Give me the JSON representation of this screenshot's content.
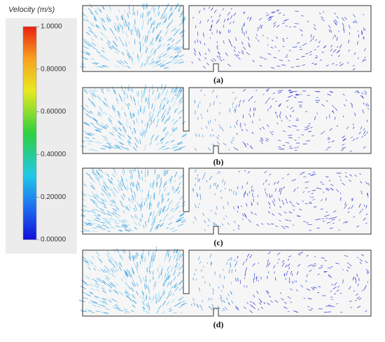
{
  "colorbar": {
    "title": "Velocity (m/s)",
    "lim": [
      0,
      1
    ],
    "ticks": [
      {
        "value": 1,
        "label": "1.0000"
      },
      {
        "value": 0.8,
        "label": "0.80000"
      },
      {
        "value": 0.6,
        "label": "0.60000"
      },
      {
        "value": 0.4,
        "label": "0.40000"
      },
      {
        "value": 0.2,
        "label": "0.20000"
      },
      {
        "value": 0,
        "label": "0.00000"
      }
    ]
  },
  "panels": [
    {
      "label": "(a)"
    },
    {
      "label": "(b)"
    },
    {
      "label": "(c)"
    },
    {
      "label": "(d)"
    }
  ]
}
